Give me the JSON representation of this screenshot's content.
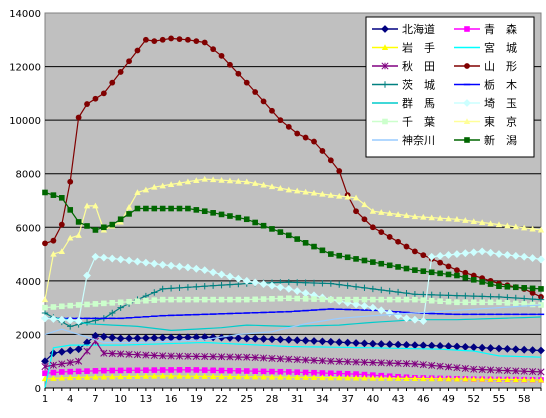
{
  "chart_data": {
    "type": "line",
    "title": "",
    "xlabel": "",
    "ylabel": "",
    "ylim": [
      0,
      14000
    ],
    "yticks": [
      0,
      2000,
      4000,
      6000,
      8000,
      10000,
      12000,
      14000
    ],
    "ytick_labels": [
      "0",
      "2000",
      "4000",
      "6000",
      "8000",
      "10000",
      "12000",
      "14000"
    ],
    "xticks": [
      1,
      4,
      7,
      10,
      13,
      16,
      19,
      22,
      25,
      28,
      31,
      34,
      37,
      40,
      43,
      46,
      49,
      52,
      55,
      58
    ],
    "xtick_labels": [
      "1",
      "4",
      "7",
      "10",
      "13",
      "16",
      "19",
      "22",
      "25",
      "28",
      "31",
      "34",
      "37",
      "40",
      "43",
      "46",
      "49",
      "52",
      "55",
      "58"
    ],
    "x_count": 60,
    "plot_background": "#c0c0c0",
    "grid": "horizontal",
    "legend_placement": "top-right",
    "series": [
      {
        "name": "北海道",
        "color": "#000080",
        "marker": "diamond",
        "anchors": [
          [
            1,
            1000
          ],
          [
            2,
            1300
          ],
          [
            5,
            1450
          ],
          [
            7,
            1950
          ],
          [
            10,
            1850
          ],
          [
            20,
            1900
          ],
          [
            30,
            1800
          ],
          [
            40,
            1650
          ],
          [
            50,
            1550
          ],
          [
            60,
            1400
          ]
        ]
      },
      {
        "name": "青　森",
        "color": "#ff00ff",
        "marker": "square",
        "anchors": [
          [
            1,
            550
          ],
          [
            3,
            600
          ],
          [
            8,
            650
          ],
          [
            18,
            680
          ],
          [
            30,
            600
          ],
          [
            38,
            520
          ],
          [
            45,
            380
          ],
          [
            52,
            330
          ],
          [
            60,
            300
          ]
        ]
      },
      {
        "name": "岩　手",
        "color": "#ffff00",
        "marker": "triangle",
        "anchors": [
          [
            1,
            350
          ],
          [
            5,
            400
          ],
          [
            15,
            450
          ],
          [
            25,
            420
          ],
          [
            40,
            370
          ],
          [
            50,
            340
          ],
          [
            60,
            300
          ]
        ]
      },
      {
        "name": "宮　城",
        "color": "#00ffff",
        "marker": "none",
        "anchors": [
          [
            1,
            0
          ],
          [
            2,
            1500
          ],
          [
            4,
            1600
          ],
          [
            10,
            1600
          ],
          [
            20,
            1700
          ],
          [
            30,
            1550
          ],
          [
            40,
            1500
          ],
          [
            48,
            1450
          ],
          [
            52,
            1380
          ],
          [
            55,
            1200
          ],
          [
            60,
            1150
          ]
        ]
      },
      {
        "name": "秋　田",
        "color": "#800080",
        "marker": "star",
        "anchors": [
          [
            1,
            800
          ],
          [
            5,
            1000
          ],
          [
            7,
            1750
          ],
          [
            8,
            1300
          ],
          [
            15,
            1200
          ],
          [
            25,
            1150
          ],
          [
            35,
            1000
          ],
          [
            45,
            900
          ],
          [
            52,
            700
          ],
          [
            60,
            600
          ]
        ]
      },
      {
        "name": "山　形",
        "color": "#800000",
        "marker": "circle",
        "anchors": [
          [
            1,
            5400
          ],
          [
            2,
            5500
          ],
          [
            3,
            6100
          ],
          [
            4,
            7700
          ],
          [
            5,
            10100
          ],
          [
            6,
            10600
          ],
          [
            8,
            11000
          ],
          [
            10,
            11800
          ],
          [
            12,
            12600
          ],
          [
            13,
            13000
          ],
          [
            14,
            12950
          ],
          [
            16,
            13050
          ],
          [
            18,
            13000
          ],
          [
            20,
            12900
          ],
          [
            22,
            12400
          ],
          [
            25,
            11400
          ],
          [
            27,
            10700
          ],
          [
            29,
            10000
          ],
          [
            31,
            9500
          ],
          [
            33,
            9200
          ],
          [
            35,
            8500
          ],
          [
            36,
            8100
          ],
          [
            37,
            7200
          ],
          [
            38,
            6600
          ],
          [
            40,
            6000
          ],
          [
            45,
            5100
          ],
          [
            50,
            4400
          ],
          [
            55,
            3900
          ],
          [
            58,
            3700
          ],
          [
            60,
            3400
          ]
        ]
      },
      {
        "name": "茨　城",
        "color": "#008080",
        "marker": "plus",
        "anchors": [
          [
            1,
            2800
          ],
          [
            4,
            2300
          ],
          [
            8,
            2600
          ],
          [
            10,
            3000
          ],
          [
            12,
            3300
          ],
          [
            15,
            3700
          ],
          [
            20,
            3800
          ],
          [
            25,
            3900
          ],
          [
            30,
            3950
          ],
          [
            35,
            3900
          ],
          [
            40,
            3700
          ],
          [
            45,
            3500
          ],
          [
            50,
            3450
          ],
          [
            55,
            3400
          ],
          [
            60,
            3300
          ]
        ]
      },
      {
        "name": "栃　木",
        "color": "#0000ff",
        "marker": "dash",
        "anchors": [
          [
            1,
            2600
          ],
          [
            5,
            2600
          ],
          [
            10,
            2600
          ],
          [
            15,
            2700
          ],
          [
            20,
            2750
          ],
          [
            25,
            2800
          ],
          [
            30,
            2850
          ],
          [
            35,
            2950
          ],
          [
            40,
            2900
          ],
          [
            45,
            2800
          ],
          [
            50,
            2750
          ],
          [
            55,
            2750
          ],
          [
            60,
            2750
          ]
        ]
      },
      {
        "name": "群　馬",
        "color": "#00cccc",
        "marker": "none",
        "anchors": [
          [
            1,
            2600
          ],
          [
            3,
            2600
          ],
          [
            6,
            2400
          ],
          [
            12,
            2300
          ],
          [
            16,
            2150
          ],
          [
            22,
            2250
          ],
          [
            25,
            2350
          ],
          [
            30,
            2300
          ],
          [
            36,
            2350
          ],
          [
            40,
            2450
          ],
          [
            45,
            2550
          ],
          [
            50,
            2550
          ],
          [
            55,
            2600
          ],
          [
            60,
            2650
          ]
        ]
      },
      {
        "name": "埼　玉",
        "color": "#ccffff",
        "marker": "diamond",
        "anchors": [
          [
            1,
            2600
          ],
          [
            5,
            2500
          ],
          [
            6,
            4200
          ],
          [
            7,
            4900
          ],
          [
            10,
            4800
          ],
          [
            15,
            4600
          ],
          [
            18,
            4500
          ],
          [
            20,
            4400
          ],
          [
            25,
            4000
          ],
          [
            30,
            3700
          ],
          [
            35,
            3300
          ],
          [
            40,
            3000
          ],
          [
            44,
            2600
          ],
          [
            46,
            2500
          ],
          [
            47,
            4900
          ],
          [
            50,
            5000
          ],
          [
            53,
            5100
          ],
          [
            55,
            5000
          ],
          [
            58,
            4900
          ],
          [
            60,
            4800
          ]
        ]
      },
      {
        "name": "千　葉",
        "color": "#ccffcc",
        "marker": "square",
        "anchors": [
          [
            1,
            3000
          ],
          [
            5,
            3100
          ],
          [
            10,
            3200
          ],
          [
            15,
            3300
          ],
          [
            20,
            3300
          ],
          [
            25,
            3300
          ],
          [
            30,
            3350
          ],
          [
            35,
            3300
          ],
          [
            40,
            3300
          ],
          [
            45,
            3300
          ],
          [
            50,
            3200
          ],
          [
            55,
            3200
          ],
          [
            60,
            3100
          ]
        ]
      },
      {
        "name": "東　京",
        "color": "#ffff99",
        "marker": "triangle",
        "anchors": [
          [
            1,
            3300
          ],
          [
            2,
            5000
          ],
          [
            3,
            5100
          ],
          [
            4,
            5600
          ],
          [
            5,
            5700
          ],
          [
            6,
            6800
          ],
          [
            7,
            6800
          ],
          [
            8,
            5900
          ],
          [
            10,
            6200
          ],
          [
            12,
            7300
          ],
          [
            14,
            7500
          ],
          [
            16,
            7600
          ],
          [
            18,
            7700
          ],
          [
            20,
            7800
          ],
          [
            25,
            7700
          ],
          [
            30,
            7400
          ],
          [
            35,
            7200
          ],
          [
            38,
            7100
          ],
          [
            40,
            6600
          ],
          [
            45,
            6400
          ],
          [
            50,
            6300
          ],
          [
            55,
            6100
          ],
          [
            60,
            5900
          ]
        ]
      },
      {
        "name": "神奈川",
        "color": "#99ccff",
        "marker": "none",
        "anchors": [
          [
            1,
            2000
          ],
          [
            3,
            2200
          ],
          [
            8,
            1700
          ],
          [
            12,
            1700
          ],
          [
            20,
            1800
          ],
          [
            24,
            2000
          ],
          [
            28,
            2100
          ],
          [
            32,
            2400
          ],
          [
            36,
            2600
          ],
          [
            40,
            2700
          ],
          [
            45,
            2800
          ],
          [
            50,
            2900
          ],
          [
            55,
            3000
          ],
          [
            60,
            3100
          ]
        ]
      },
      {
        "name": "新　潟",
        "color": "#006600",
        "marker": "square",
        "anchors": [
          [
            1,
            7300
          ],
          [
            3,
            7100
          ],
          [
            5,
            6200
          ],
          [
            7,
            5900
          ],
          [
            9,
            6100
          ],
          [
            12,
            6700
          ],
          [
            15,
            6700
          ],
          [
            18,
            6700
          ],
          [
            20,
            6600
          ],
          [
            25,
            6300
          ],
          [
            30,
            5700
          ],
          [
            35,
            5000
          ],
          [
            40,
            4700
          ],
          [
            45,
            4400
          ],
          [
            50,
            4200
          ],
          [
            55,
            3800
          ],
          [
            60,
            3700
          ]
        ]
      }
    ]
  }
}
